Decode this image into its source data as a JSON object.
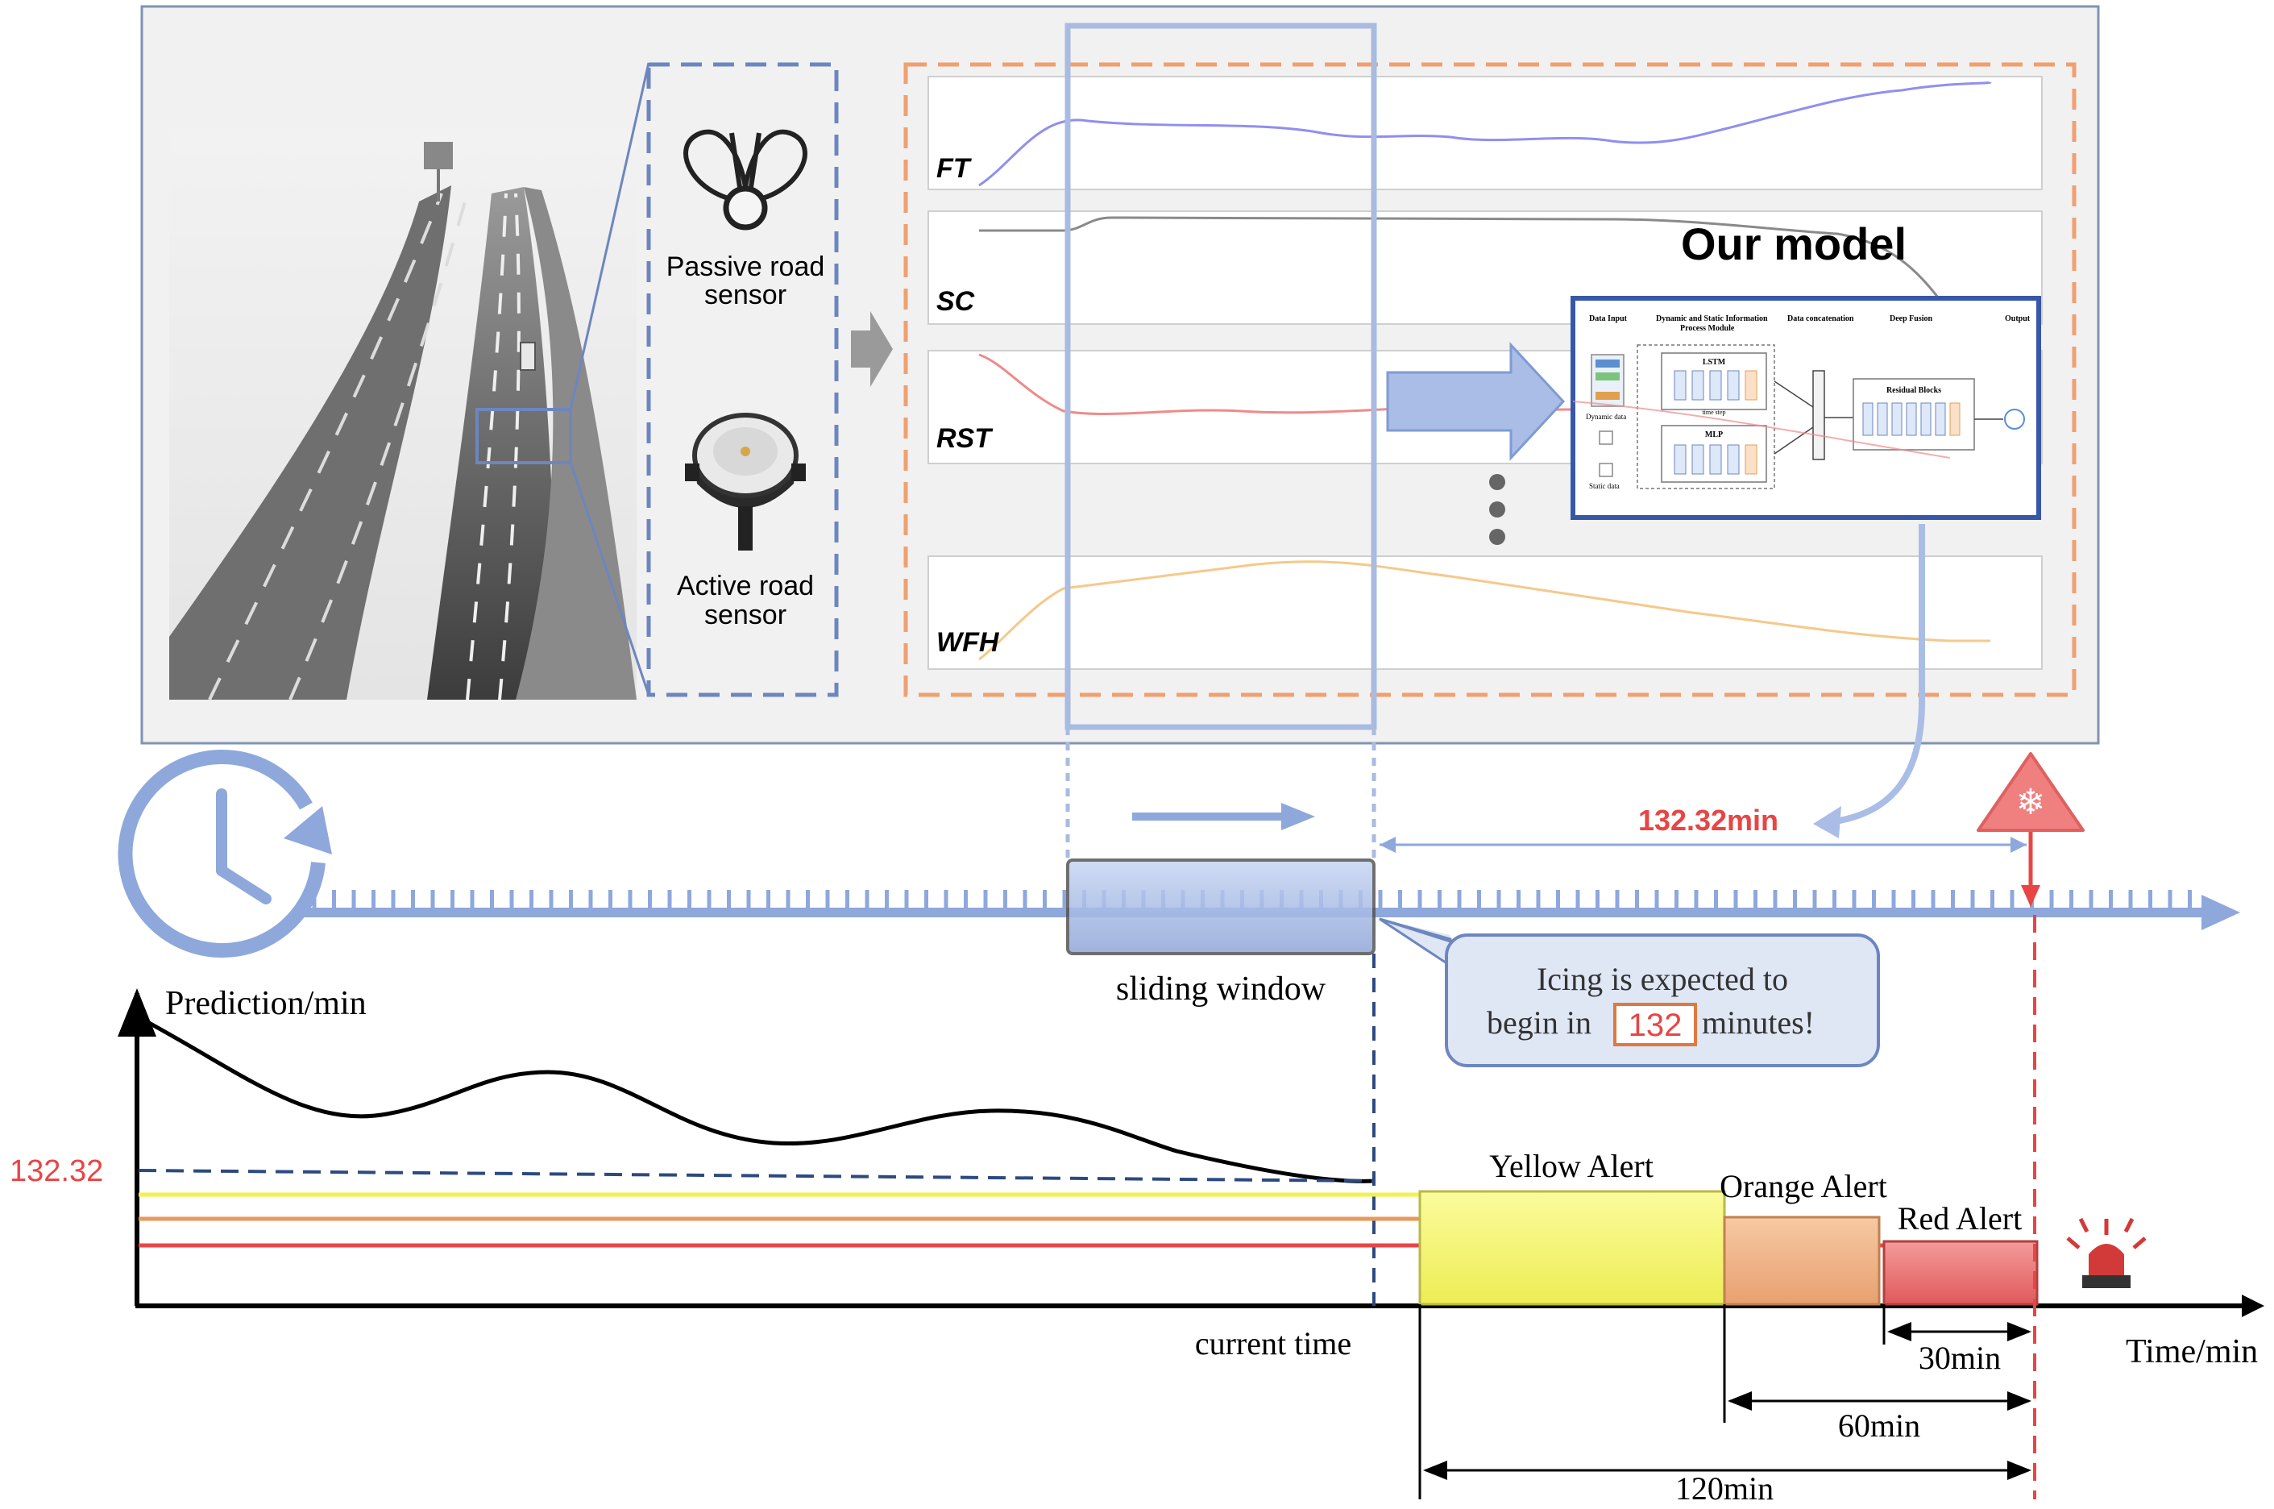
{
  "sensors": {
    "passive_label_line1": "Passive road",
    "passive_label_line2": "sensor",
    "active_label_line1": "Active road",
    "active_label_line2": "sensor"
  },
  "series": [
    {
      "label": "FT",
      "color": "#8f8ff0"
    },
    {
      "label": "SC",
      "color": "#8a8a8a"
    },
    {
      "label": "RST",
      "color": "#f08a8a"
    },
    {
      "label": "WFH",
      "color": "#f5c98a"
    }
  ],
  "model": {
    "title": "Our model",
    "headers": [
      "Data Input",
      "Dynamic and Static Information",
      "Process Module",
      "Data concatenation",
      "Deep Fusion",
      "Output"
    ],
    "blocks": [
      "LSTM",
      "MLP",
      "Residual Blocks",
      "Dynamic data",
      "Static data",
      "time step"
    ]
  },
  "timeline": {
    "prediction_value": "132.32min",
    "sliding_window_label": "sliding window",
    "callout_prefix": "Icing is expected to",
    "callout_mid": "begin in",
    "callout_number": "132",
    "callout_suffix": "minutes!"
  },
  "plot": {
    "y_axis_label": "Prediction/min",
    "y_value_label": "132.32",
    "x_axis_label": "Time/min",
    "current_time_label": "current time"
  },
  "alerts": [
    {
      "label": "Yellow Alert",
      "color": "#f5f57a"
    },
    {
      "label": "Orange Alert",
      "color": "#f2b98c"
    },
    {
      "label": "Red Alert",
      "color": "#ee7b7b"
    }
  ],
  "intervals": [
    "30min",
    "60min",
    "120min"
  ],
  "colors": {
    "panel_border": "#7f93b5",
    "sensor_box": "#6d86c0",
    "chart_box": "#f0a070",
    "window": "#a9bbe0",
    "timeline": "#8ea8dc",
    "red": "#e84545",
    "navy": "#2c4a80"
  }
}
